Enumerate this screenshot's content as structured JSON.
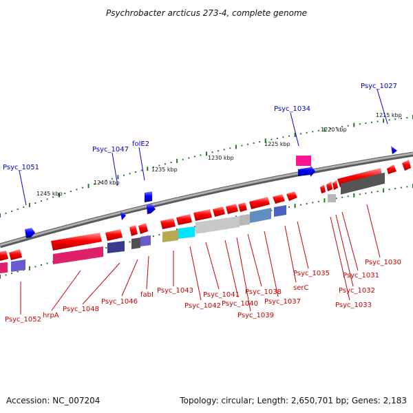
{
  "title": "Psychrobacter arcticus 273-4, complete genome",
  "footer": {
    "accession": "Accession: NC_007204",
    "stats": "Topology: circular; Length: 2,650,701 bp; Genes: 2,183"
  },
  "kbp_ticks": [
    {
      "kbp": 1215,
      "label": "1215 kbp"
    },
    {
      "kbp": 1220,
      "label": "1220 kbp"
    },
    {
      "kbp": 1225,
      "label": "1225 kbp"
    },
    {
      "kbp": 1230,
      "label": "1230 kbp"
    },
    {
      "kbp": 1235,
      "label": "1235 kbp"
    },
    {
      "kbp": 1240,
      "label": "1240 kbp"
    },
    {
      "kbp": 1245,
      "label": "1245 kbp"
    }
  ],
  "labels_top": [
    {
      "text": "Psyc_1027",
      "color": "#0000c8"
    },
    {
      "text": "Psyc_1034",
      "color": "#0000c8"
    },
    {
      "text": "Psyc_1047",
      "color": "#0000c8"
    },
    {
      "text": "folE2",
      "color": "#0000c8"
    },
    {
      "text": "Psyc_1051",
      "color": "#0000c8"
    }
  ],
  "labels_bottom": [
    {
      "text": "Psyc_1030",
      "color": "#c80000"
    },
    {
      "text": "Psyc_1031",
      "color": "#c80000"
    },
    {
      "text": "Psyc_1032",
      "color": "#c80000"
    },
    {
      "text": "Psyc_1033",
      "color": "#c80000"
    },
    {
      "text": "Psyc_1035",
      "color": "#c80000"
    },
    {
      "text": "serC",
      "color": "#c80000"
    },
    {
      "text": "Psyc_1037",
      "color": "#c80000"
    },
    {
      "text": "Psyc_1038",
      "color": "#c80000"
    },
    {
      "text": "Psyc_1039",
      "color": "#c80000"
    },
    {
      "text": "Psyc_1040",
      "color": "#c80000"
    },
    {
      "text": "Psyc_1041",
      "color": "#c80000"
    },
    {
      "text": "Psyc_1042",
      "color": "#c80000"
    },
    {
      "text": "Psyc_1043",
      "color": "#c80000"
    },
    {
      "text": "fabI",
      "color": "#c80000"
    },
    {
      "text": "Psyc_1046",
      "color": "#c80000"
    },
    {
      "text": "Psyc_1048",
      "color": "#c80000"
    },
    {
      "text": "hrpA",
      "color": "#c80000"
    },
    {
      "text": "Psyc_1052",
      "color": "#c80000"
    }
  ],
  "colors": {
    "backbone": "#808080",
    "forward_gene": "#ff0000",
    "reverse_gene": "#0000ff",
    "tick": "#1f7a1f"
  }
}
